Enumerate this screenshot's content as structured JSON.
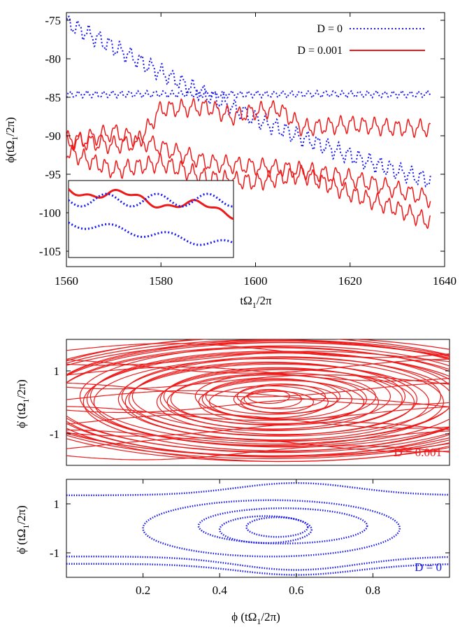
{
  "figure": {
    "top_panel": {
      "xlabel": "tΩ1/2π",
      "ylabel": "ϕ(tΩ1/2π)",
      "xticks": [
        "1560",
        "1580",
        "1600",
        "1620",
        "1640"
      ],
      "yticks": [
        "-75",
        "-80",
        "-85",
        "-90",
        "-95",
        "-100",
        "-105"
      ],
      "legend": [
        {
          "label": "D = 0",
          "color": "#1a1aee",
          "style": "dotted"
        },
        {
          "label": "D = 0.001",
          "color": "#ee1a1a",
          "style": "solid"
        }
      ]
    },
    "middle_panel": {
      "ylabel": "ϕ̇ (tΩ1/2π)",
      "yticks": [
        "1",
        "-1"
      ],
      "tag": "D = 0.001"
    },
    "bottom_panel": {
      "ylabel": "ϕ̇ (tΩ1/2π)",
      "yticks": [
        "1",
        "-1"
      ],
      "xticks": [
        "0.2",
        "0.4",
        "0.6",
        "0.8"
      ],
      "xlabel": "ϕ (tΩ1/2π)",
      "tag": "D = 0"
    }
  },
  "chart_data": [
    {
      "type": "line",
      "xlabel": "tΩ1/2π",
      "ylabel": "ϕ(tΩ1/2π)",
      "xlim": [
        1560,
        1640
      ],
      "ylim": [
        -107,
        -74
      ],
      "grid": false,
      "legend_position": "top-right",
      "inset": true,
      "series": [
        {
          "name": "D = 0",
          "style": "dotted",
          "color": "#1a1aee",
          "x": [
            1560,
            1570,
            1580,
            1590,
            1600,
            1610,
            1620,
            1630,
            1637
          ],
          "y": [
            -75.3,
            -78.5,
            -81.8,
            -84.8,
            -87.8,
            -90.3,
            -92.6,
            -94.6,
            -95.8
          ]
        },
        {
          "name": "D = 0",
          "style": "dotted",
          "color": "#1a1aee",
          "x": [
            1560,
            1637
          ],
          "y": [
            -84.6,
            -84.6
          ]
        },
        {
          "name": "D = 0.001",
          "style": "solid",
          "color": "#ee1a1a",
          "x": [
            1560,
            1570,
            1575,
            1580,
            1590,
            1595,
            1600,
            1605,
            1610,
            1620,
            1630,
            1637
          ],
          "y": [
            -90.5,
            -91.2,
            -91.0,
            -86.5,
            -86.3,
            -87.5,
            -86.8,
            -86.5,
            -89.0,
            -88.5,
            -89.0,
            -89.0
          ]
        },
        {
          "name": "D = 0.001",
          "style": "solid",
          "color": "#ee1a1a",
          "x": [
            1560,
            1570,
            1580,
            1590,
            1600,
            1610,
            1620,
            1630,
            1637
          ],
          "y": [
            -91.0,
            -89.5,
            -91.5,
            -93.5,
            -94.0,
            -94.5,
            -95.5,
            -97.0,
            -98.2
          ]
        },
        {
          "name": "D = 0.001",
          "style": "solid",
          "color": "#ee1a1a",
          "x": [
            1560,
            1570,
            1580,
            1590,
            1600,
            1610,
            1620,
            1630,
            1637
          ],
          "y": [
            -92.0,
            -94.5,
            -93.5,
            -95.5,
            -96.0,
            -95.0,
            -97.5,
            -99.5,
            -101.2
          ]
        }
      ]
    },
    {
      "type": "line",
      "ylabel": "ϕ̇ (tΩ1/2π)",
      "xlim": [
        0,
        1
      ],
      "ylim": [
        -2,
        2
      ],
      "grid": false,
      "annotation": "D = 0.001",
      "series": [
        {
          "name": "D = 0.001",
          "color": "#ee1a1a",
          "style": "solid",
          "x": [
            0.0,
            1.0
          ],
          "y": [
            1.6,
            -1.6
          ]
        }
      ]
    },
    {
      "type": "scatter",
      "xlabel": "ϕ (tΩ1/2π)",
      "ylabel": "ϕ̇ (tΩ1/2π)",
      "xlim": [
        0,
        1
      ],
      "ylim": [
        -2,
        2
      ],
      "grid": false,
      "annotation": "D = 0",
      "series": [
        {
          "name": "D = 0",
          "color": "#1a1aee",
          "style": "dotted",
          "x": [
            0.2,
            0.87
          ],
          "y": [
            1.3,
            -1.1
          ]
        }
      ]
    }
  ]
}
